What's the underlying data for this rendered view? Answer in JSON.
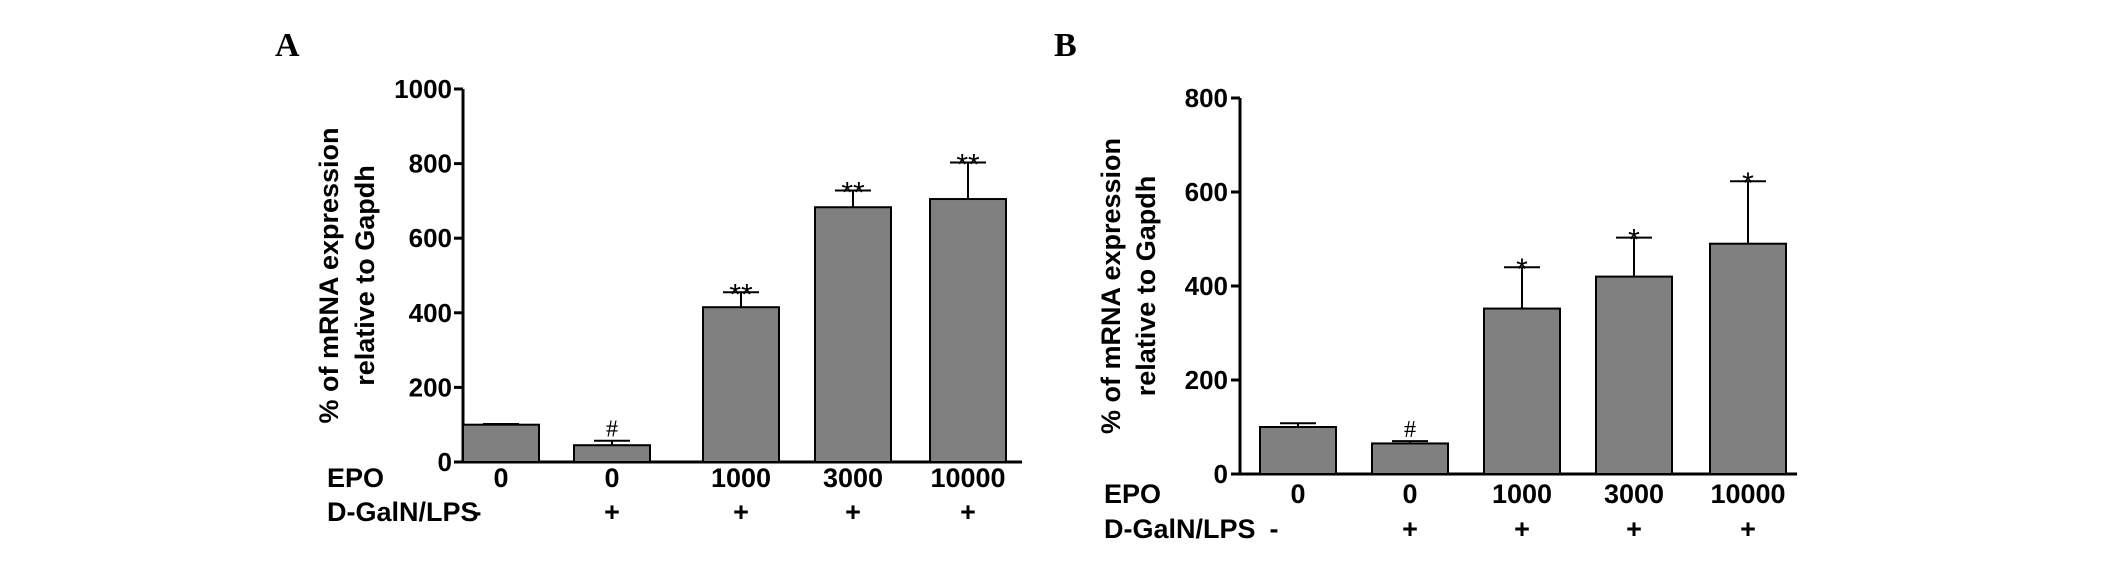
{
  "chart_data": [
    {
      "panel": "A",
      "type": "bar",
      "ylabel_lines": [
        "% of mRNA expression",
        "relative to Gapdh"
      ],
      "ylim": [
        0,
        1000
      ],
      "yticks": [
        0,
        200,
        400,
        600,
        800,
        1000
      ],
      "categories": [
        "0",
        "0",
        "1000",
        "3000",
        "10000"
      ],
      "conditions": [
        {
          "label": "EPO",
          "values": [
            "0",
            "0",
            "1000",
            "3000",
            "10000"
          ]
        },
        {
          "label": "D-GalN/LPS",
          "values": [
            "-",
            "+",
            "+",
            "+",
            "+"
          ]
        }
      ],
      "values": [
        100,
        45,
        415,
        683,
        705
      ],
      "errors": [
        2,
        12,
        40,
        45,
        98
      ],
      "significance": [
        "",
        "#",
        "**",
        "**",
        "**"
      ],
      "bar_color": "#808080"
    },
    {
      "panel": "B",
      "type": "bar",
      "ylabel_lines": [
        "% of mRNA expression",
        "relative to Gapdh"
      ],
      "ylim": [
        0,
        800
      ],
      "yticks": [
        0,
        200,
        400,
        600,
        800
      ],
      "categories": [
        "0",
        "0",
        "1000",
        "3000",
        "10000"
      ],
      "conditions": [
        {
          "label": "EPO",
          "values": [
            "0",
            "0",
            "1000",
            "3000",
            "10000"
          ]
        },
        {
          "label": "D-GalN/LPS",
          "values": [
            "-",
            "+",
            "+",
            "+",
            "+"
          ]
        }
      ],
      "values": [
        100,
        65,
        352,
        420,
        490
      ],
      "errors": [
        8,
        5,
        88,
        83,
        133
      ],
      "significance": [
        "",
        "#",
        "*",
        "*",
        "*"
      ],
      "bar_color": "#808080"
    }
  ]
}
